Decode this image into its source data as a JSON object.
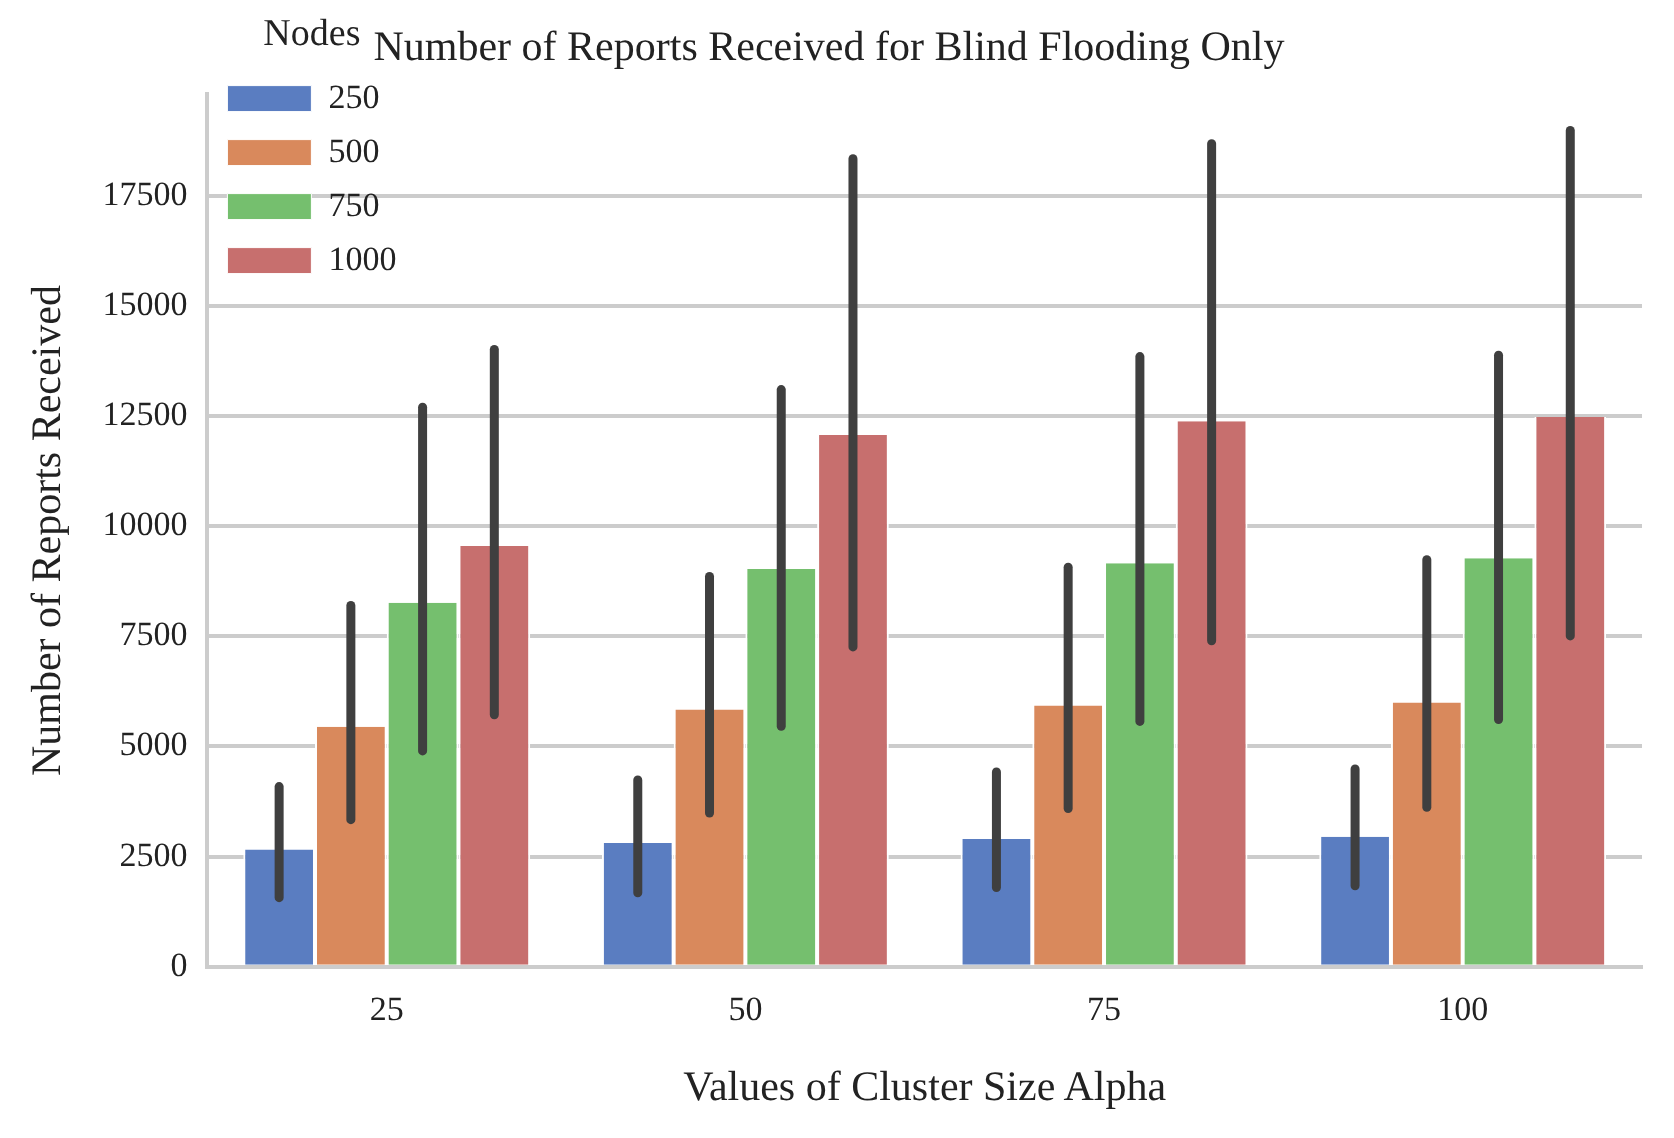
{
  "chart_data": {
    "type": "bar",
    "title": "Number of Reports Received for Blind Flooding Only",
    "xlabel": "Values of Cluster Size Alpha",
    "ylabel": "Number of Reports Received",
    "legend_title": "Nodes",
    "categories": [
      "25",
      "50",
      "75",
      "100"
    ],
    "series": [
      {
        "name": "250",
        "color": "#5a7dc1",
        "values": [
          2660,
          2810,
          2900,
          2950
        ],
        "errors": [
          [
            1570,
            4090
          ],
          [
            1680,
            4240
          ],
          [
            1800,
            4420
          ],
          [
            1840,
            4490
          ]
        ]
      },
      {
        "name": "500",
        "color": "#d9895c",
        "values": [
          5450,
          5840,
          5930,
          6000
        ],
        "errors": [
          [
            3340,
            8200
          ],
          [
            3490,
            8860
          ],
          [
            3590,
            9070
          ],
          [
            3620,
            9240
          ]
        ]
      },
      {
        "name": "750",
        "color": "#75bf6e",
        "values": [
          8260,
          9030,
          9160,
          9270
        ],
        "errors": [
          [
            4900,
            12700
          ],
          [
            5460,
            13100
          ],
          [
            5570,
            13850
          ],
          [
            5610,
            13880
          ]
        ]
      },
      {
        "name": "1000",
        "color": "#c76f6e",
        "values": [
          9550,
          12070,
          12380,
          12480
        ],
        "errors": [
          [
            5720,
            14010
          ],
          [
            7260,
            18340
          ],
          [
            7400,
            18680
          ],
          [
            7510,
            18980
          ]
        ]
      }
    ],
    "ylim": [
      0,
      19800
    ],
    "yticks": [
      0,
      2500,
      5000,
      7500,
      10000,
      12500,
      15000,
      17500
    ],
    "grid": "y",
    "legend": "top left"
  }
}
